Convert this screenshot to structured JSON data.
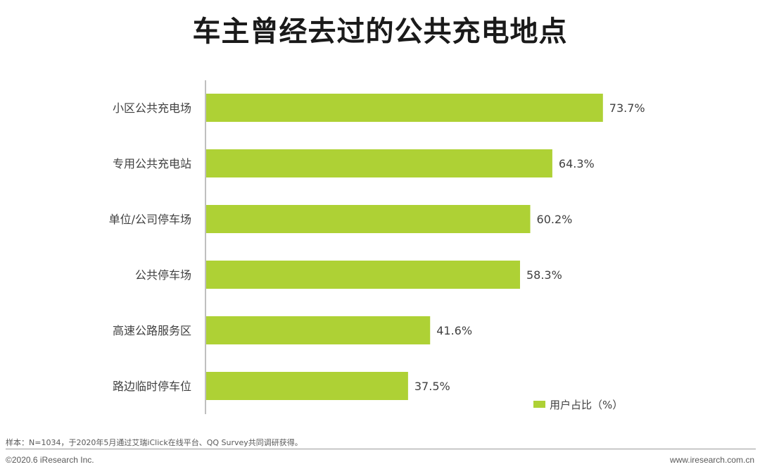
{
  "title": "车主曾经去过的公共充电地点",
  "chart_data": {
    "type": "bar",
    "orientation": "horizontal",
    "categories": [
      "小区公共充电场",
      "专用公共充电站",
      "单位/公司停车场",
      "公共停车场",
      "高速公路服务区",
      "路边临时停车位"
    ],
    "series": [
      {
        "name": "用户占比（%）",
        "values": [
          73.7,
          64.3,
          60.2,
          58.3,
          41.6,
          37.5
        ],
        "color": "#aed135"
      }
    ],
    "value_suffix": "%",
    "xlim": [
      0,
      100
    ],
    "grid": false,
    "legend": "bottom-right"
  },
  "footer": {
    "note": "样本：N=1034，于2020年5月通过艾瑞iClick在线平台、QQ Survey共同调研获得。",
    "copyright": "©2020.6 iResearch Inc.",
    "website": "www.iresearch.com.cn"
  }
}
